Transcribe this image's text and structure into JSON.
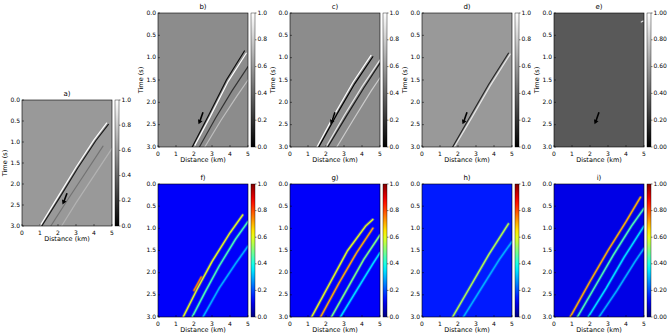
{
  "chart_data": [
    {
      "type": "line",
      "title": "a)",
      "x_label": "Distance (km)",
      "y_label": "Time (s)",
      "color": "gray",
      "background": 0.6,
      "xlim": [
        0,
        5
      ],
      "xticks": [
        0,
        1,
        2,
        3,
        4,
        5
      ],
      "ylim": [
        3,
        0
      ],
      "yticks": [
        {
          "value": 0,
          "label": "0.0"
        },
        0.5,
        {
          "value": 1,
          "label": "1.0"
        },
        1.5,
        {
          "value": 2,
          "label": "2.0"
        },
        2.5,
        {
          "value": 3,
          "label": "3.0"
        }
      ],
      "colorbar_range": [
        0,
        1
      ],
      "colorbar_ticks": [
        {
          "value": 0,
          "label": "0.0"
        },
        0.2,
        0.4,
        0.6,
        0.8,
        {
          "value": 1,
          "label": "1.0"
        }
      ],
      "series": [
        {
          "x": [
            1.0,
            2.0,
            3.0,
            4.0,
            4.7
          ],
          "values": [
            3.0,
            2.3,
            1.6,
            0.95,
            0.55
          ],
          "amplitude": 1.0
        },
        {
          "x": [
            1.1,
            2.1,
            3.1,
            4.1,
            4.8
          ],
          "values": [
            3.0,
            2.32,
            1.62,
            0.97,
            0.58
          ],
          "amplitude": 0.1
        },
        {
          "x": [
            1.6,
            2.5,
            3.5,
            4.5
          ],
          "values": [
            3.0,
            2.4,
            1.75,
            1.1
          ],
          "amplitude": 0.45
        },
        {
          "x": [
            2.2,
            3.0,
            4.0,
            5.0
          ],
          "values": [
            3.0,
            2.45,
            1.8,
            1.15
          ],
          "amplitude": 0.7
        }
      ]
    },
    {
      "type": "line",
      "title": "b)",
      "x_label": "Distance (km)",
      "y_label": "Time (s)",
      "color": "gray",
      "background": 0.55,
      "xlim": [
        0,
        5
      ],
      "xticks": [
        0,
        1,
        2,
        3,
        4,
        5
      ],
      "ylim": [
        3,
        0
      ],
      "yticks": [
        {
          "value": 0,
          "label": "0.0"
        },
        0.5,
        {
          "value": 1,
          "label": "1.0"
        },
        1.5,
        {
          "value": 2,
          "label": "2.0"
        },
        2.5,
        {
          "value": 3,
          "label": "3.0"
        }
      ],
      "colorbar_range": [
        0,
        1
      ],
      "colorbar_ticks": [
        {
          "value": 0,
          "label": "0.0"
        },
        0.2,
        0.4,
        0.6,
        0.8,
        {
          "value": 1,
          "label": "1.0"
        }
      ],
      "series": [
        {
          "x": [
            1.9,
            2.8,
            3.8,
            4.8
          ],
          "values": [
            3.0,
            2.3,
            1.5,
            0.85
          ],
          "amplitude": 0.05
        },
        {
          "x": [
            2.0,
            2.9,
            3.9,
            4.9
          ],
          "values": [
            3.0,
            2.32,
            1.53,
            0.9
          ],
          "amplitude": 1.0
        },
        {
          "x": [
            2.3,
            3.2,
            4.1,
            5.0
          ],
          "values": [
            3.0,
            2.35,
            1.75,
            1.2
          ],
          "amplitude": 0.2
        },
        {
          "x": [
            2.6,
            3.5,
            4.4,
            5.0
          ],
          "values": [
            3.0,
            2.4,
            1.85,
            1.5
          ],
          "amplitude": 0.75
        }
      ]
    },
    {
      "type": "line",
      "title": "c)",
      "x_label": "Distance (km)",
      "y_label": "Time (s)",
      "color": "gray",
      "background": 0.55,
      "xlim": [
        0,
        5
      ],
      "xticks": [
        0,
        1,
        2,
        3,
        4,
        5
      ],
      "ylim": [
        3,
        0
      ],
      "yticks": [
        {
          "value": 0,
          "label": "0.0"
        },
        0.5,
        {
          "value": 1,
          "label": "1.0"
        },
        1.5,
        {
          "value": 2,
          "label": "2.0"
        },
        2.5,
        {
          "value": 3,
          "label": "3.0"
        }
      ],
      "colorbar_range": [
        0,
        1
      ],
      "colorbar_ticks": [
        {
          "value": 0,
          "label": "0.0"
        },
        0.2,
        0.4,
        0.6,
        0.8,
        {
          "value": 1,
          "label": "1.0"
        }
      ],
      "series": [
        {
          "x": [
            1.5,
            2.5,
            3.5,
            4.5
          ],
          "values": [
            3.0,
            2.25,
            1.55,
            0.95
          ],
          "amplitude": 1.0
        },
        {
          "x": [
            1.6,
            2.6,
            3.6,
            4.6
          ],
          "values": [
            3.0,
            2.27,
            1.58,
            0.98
          ],
          "amplitude": 0.0
        },
        {
          "x": [
            2.0,
            3.0,
            4.0,
            5.0
          ],
          "values": [
            3.0,
            2.3,
            1.65,
            1.05
          ],
          "amplitude": 0.9
        },
        {
          "x": [
            2.1,
            3.1,
            4.1,
            5.0
          ],
          "values": [
            3.0,
            2.33,
            1.68,
            1.12
          ],
          "amplitude": 0.1
        },
        {
          "x": [
            2.6,
            3.5,
            4.5,
            5.0
          ],
          "values": [
            3.0,
            2.4,
            1.75,
            1.45
          ],
          "amplitude": 0.8
        }
      ]
    },
    {
      "type": "line",
      "title": "d)",
      "x_label": "Distance (km)",
      "y_label": "Time (s)",
      "color": "gray",
      "background": 0.6,
      "xlim": [
        0,
        5
      ],
      "xticks": [
        0,
        1,
        2,
        3,
        4,
        5
      ],
      "ylim": [
        3,
        0
      ],
      "yticks": [
        {
          "value": 0,
          "label": "0.0"
        },
        0.5,
        {
          "value": 1,
          "label": "1.0"
        },
        1.5,
        {
          "value": 2,
          "label": "2.0"
        },
        2.5,
        {
          "value": 3,
          "label": "3.0"
        }
      ],
      "colorbar_range": [
        0,
        1
      ],
      "colorbar_ticks": [
        {
          "value": 0,
          "label": "0.0"
        },
        0.2,
        0.4,
        0.6,
        0.8,
        {
          "value": 1,
          "label": "1.0"
        }
      ],
      "series": [
        {
          "x": [
            1.7,
            2.7,
            3.7,
            4.8
          ],
          "values": [
            3.0,
            2.3,
            1.6,
            0.9
          ],
          "amplitude": 0.15
        },
        {
          "x": [
            1.8,
            2.8,
            3.8,
            4.9
          ],
          "values": [
            3.0,
            2.32,
            1.62,
            0.92
          ],
          "amplitude": 0.9
        }
      ]
    },
    {
      "type": "line",
      "title": "e)",
      "x_label": "Distance (km)",
      "y_label": "Time (s)",
      "color": "gray",
      "background": 0.35,
      "xlim": [
        0,
        5
      ],
      "xticks": [
        0,
        1,
        2,
        3,
        4,
        5
      ],
      "ylim": [
        3,
        0
      ],
      "yticks": [
        {
          "value": 0,
          "label": "0.0"
        },
        0.5,
        {
          "value": 1,
          "label": "1.0"
        },
        1.5,
        {
          "value": 2,
          "label": "2.0"
        },
        2.5,
        {
          "value": 3,
          "label": "3.0"
        }
      ],
      "colorbar_range": [
        0,
        1
      ],
      "colorbar_ticks": [
        {
          "value": 0,
          "label": "0.00"
        },
        {
          "value": 0.2,
          "label": "0.20"
        },
        {
          "value": 0.4,
          "label": "0.40"
        },
        {
          "value": 0.6,
          "label": "0.60"
        },
        {
          "value": 0.8,
          "label": "0.80"
        },
        {
          "value": 1,
          "label": "1.00"
        }
      ],
      "series": [
        {
          "x": [
            4.85,
            4.95
          ],
          "values": [
            0.2,
            0.18
          ],
          "amplitude": 0.9
        }
      ]
    },
    {
      "type": "line",
      "title": "f)",
      "x_label": "Distance (km)",
      "color": "jet",
      "background": 0.12,
      "xlim": [
        0,
        5
      ],
      "xticks": [
        0,
        1,
        2,
        3,
        4,
        5
      ],
      "ylim": [
        3,
        0
      ],
      "yticks": [
        {
          "value": 0,
          "label": "0.0"
        },
        0.5,
        {
          "value": 1,
          "label": "1.0"
        },
        1.5,
        {
          "value": 2,
          "label": "2.0"
        },
        2.5,
        {
          "value": 3,
          "label": "3.0"
        }
      ],
      "colorbar_range": [
        0,
        1
      ],
      "colorbar_ticks": [
        {
          "value": 0,
          "label": "0.0"
        },
        0.2,
        0.4,
        0.6,
        0.8,
        {
          "value": 1,
          "label": "1.0"
        }
      ],
      "series": [
        {
          "x": [
            1.4,
            2.2,
            3.0,
            4.0,
            4.7
          ],
          "values": [
            3.0,
            2.35,
            1.75,
            1.1,
            0.7
          ],
          "amplitude": 0.6
        },
        {
          "x": [
            1.9,
            2.6,
            3.4,
            4.3,
            5.0
          ],
          "values": [
            3.0,
            2.45,
            1.85,
            1.25,
            0.85
          ],
          "amplitude": 0.45
        },
        {
          "x": [
            2.5,
            3.4,
            4.3,
            5.0
          ],
          "values": [
            3.0,
            2.35,
            1.8,
            1.4
          ],
          "amplitude": 0.3
        },
        {
          "x": [
            2.0,
            2.4
          ],
          "values": [
            2.4,
            2.1
          ],
          "amplitude": 0.75
        }
      ]
    },
    {
      "type": "line",
      "title": "g)",
      "x_label": "Distance (km)",
      "color": "jet",
      "background": 0.12,
      "xlim": [
        0,
        5
      ],
      "xticks": [
        0,
        1,
        2,
        3,
        4,
        5
      ],
      "ylim": [
        3,
        0
      ],
      "yticks": [
        {
          "value": 0,
          "label": "0.0"
        },
        0.5,
        {
          "value": 1,
          "label": "1.0"
        },
        1.5,
        {
          "value": 2,
          "label": "2.0"
        },
        2.5,
        {
          "value": 3,
          "label": "3.0"
        }
      ],
      "colorbar_range": [
        0,
        1
      ],
      "colorbar_ticks": [
        {
          "value": 0,
          "label": "0.0"
        },
        0.2,
        0.4,
        0.6,
        0.8,
        {
          "value": 1,
          "label": "1.0"
        }
      ],
      "series": [
        {
          "x": [
            1.2,
            2.2,
            3.2,
            4.2,
            4.6
          ],
          "values": [
            3.0,
            2.25,
            1.5,
            0.95,
            0.8
          ],
          "amplitude": 0.6
        },
        {
          "x": [
            1.7,
            2.7,
            3.7,
            4.6
          ],
          "values": [
            3.0,
            2.25,
            1.55,
            1.0
          ],
          "amplitude": 0.7
        },
        {
          "x": [
            2.3,
            3.2,
            4.1,
            5.0
          ],
          "values": [
            3.0,
            2.35,
            1.7,
            1.15
          ],
          "amplitude": 0.5
        },
        {
          "x": [
            2.8,
            3.7,
            4.6,
            5.0
          ],
          "values": [
            3.0,
            2.4,
            1.8,
            1.55
          ],
          "amplitude": 0.35
        }
      ]
    },
    {
      "type": "line",
      "title": "h)",
      "x_label": "Distance (km)",
      "color": "jet",
      "background": 0.15,
      "xlim": [
        0,
        5
      ],
      "xticks": [
        0,
        1,
        2,
        3,
        4,
        5
      ],
      "ylim": [
        3,
        0
      ],
      "yticks": [
        {
          "value": 0,
          "label": "0.0"
        },
        0.5,
        {
          "value": 1,
          "label": "1.0"
        },
        1.5,
        {
          "value": 2,
          "label": "2.0"
        },
        2.5,
        {
          "value": 3,
          "label": "3.0"
        }
      ],
      "colorbar_range": [
        0,
        1
      ],
      "colorbar_ticks": [
        {
          "value": 0,
          "label": "0.0"
        },
        0.2,
        0.4,
        0.6,
        0.8,
        {
          "value": 1,
          "label": "1.0"
        }
      ],
      "series": [
        {
          "x": [
            1.7,
            2.7,
            3.7,
            4.8
          ],
          "values": [
            3.0,
            2.3,
            1.6,
            0.9
          ],
          "amplitude": 0.55
        },
        {
          "x": [
            2.3,
            3.3,
            4.3,
            5.0
          ],
          "values": [
            3.0,
            2.35,
            1.7,
            1.3
          ],
          "amplitude": 0.3
        }
      ]
    },
    {
      "type": "line",
      "title": "i)",
      "x_label": "Distance (km)",
      "color": "jet",
      "background": 0.1,
      "xlim": [
        0,
        5
      ],
      "xticks": [
        0,
        1,
        2,
        3,
        4,
        5
      ],
      "ylim": [
        3,
        0
      ],
      "yticks": [
        {
          "value": 0,
          "label": "0.0"
        },
        0.5,
        {
          "value": 1,
          "label": "1.0"
        },
        1.5,
        {
          "value": 2,
          "label": "2.0"
        },
        2.5,
        {
          "value": 3,
          "label": "3.0"
        }
      ],
      "colorbar_range": [
        0,
        1
      ],
      "colorbar_ticks": [
        {
          "value": 0,
          "label": "0.00"
        },
        {
          "value": 0.2,
          "label": "0.20"
        },
        {
          "value": 0.4,
          "label": "0.40"
        },
        {
          "value": 0.6,
          "label": "0.60"
        },
        {
          "value": 0.8,
          "label": "0.80"
        },
        {
          "value": 1,
          "label": "1.00"
        }
      ],
      "series": [
        {
          "x": [
            0.9,
            2.0,
            3.0,
            4.0,
            4.8
          ],
          "values": [
            3.0,
            2.2,
            1.5,
            0.85,
            0.3
          ],
          "amplitude": 0.7
        },
        {
          "x": [
            1.3,
            2.3,
            3.3,
            4.3,
            5.0
          ],
          "values": [
            3.0,
            2.3,
            1.6,
            0.95,
            0.55
          ],
          "amplitude": 0.45
        },
        {
          "x": [
            1.9,
            2.9,
            3.9,
            5.0
          ],
          "values": [
            3.0,
            2.35,
            1.65,
            0.95
          ],
          "amplitude": 0.35
        },
        {
          "x": [
            2.5,
            3.5,
            4.5,
            5.0
          ],
          "values": [
            3.0,
            2.4,
            1.75,
            1.45
          ],
          "amplitude": 0.3
        }
      ]
    }
  ]
}
